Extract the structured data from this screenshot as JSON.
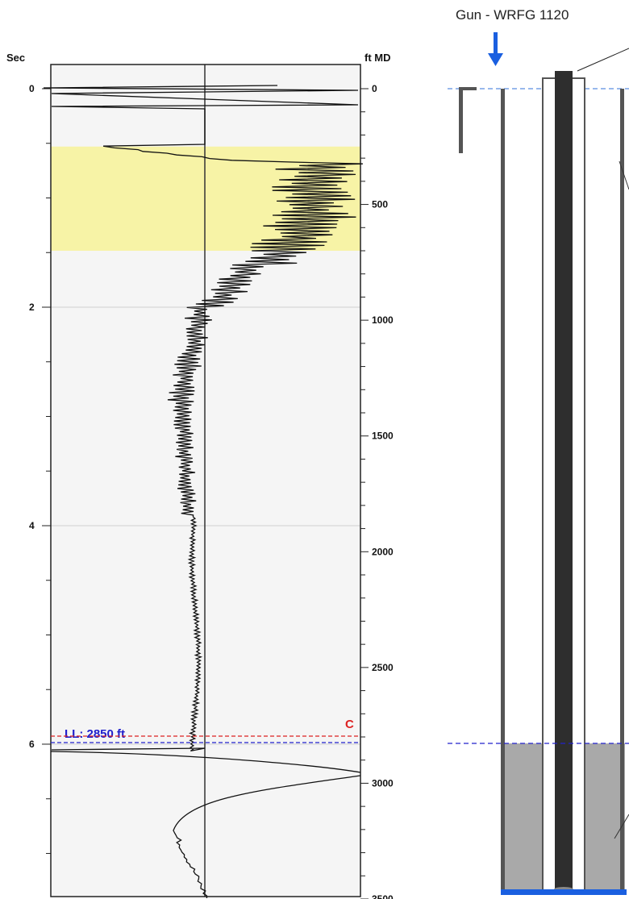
{
  "chart_data": {
    "type": "line",
    "left_axis": {
      "title": "Sec",
      "ticks": [
        "0",
        "2",
        "4",
        "6"
      ],
      "range": [
        0,
        7.55
      ]
    },
    "right_axis": {
      "title": "ft MD",
      "ticks": [
        "0",
        "500",
        "1000",
        "1500",
        "2000",
        "2500",
        "3000",
        "3500"
      ],
      "range": [
        0,
        3500
      ]
    },
    "highlight_band": {
      "from_ft": 250,
      "to_ft": 700,
      "color": "#f7f3a6"
    },
    "background_color": "#f5f5f5",
    "grid": true,
    "markers": [
      {
        "label": "LL: 2850 ft",
        "depth_ft": 2850,
        "color": "#2222cc",
        "style": "dashed"
      },
      {
        "label": "C",
        "depth_ft": 2800,
        "color": "#dd2222",
        "style": "dashed"
      }
    ],
    "series": [
      {
        "description_points_ft": [
          [
            0.1,
            -70
          ],
          [
            0.55,
            30
          ],
          [
            0.95,
            10
          ],
          [
            1.3,
            -5
          ],
          [
            2.2,
            -20
          ],
          [
            3.2,
            -35
          ],
          [
            4.5,
            -22
          ],
          [
            5.5,
            -20
          ],
          [
            6.2,
            -18
          ],
          [
            6.46,
            -40
          ]
        ]
      }
    ]
  },
  "wellbore": {
    "gun_label": "Gun - WRFG 1120",
    "arrow_color": "#1a5fe0",
    "fluid_level_color": "#2222cc",
    "fluid_color": "#a9a9a9",
    "tubing_color": "#2e2e2e",
    "bottom_color": "#1a5fe0"
  }
}
